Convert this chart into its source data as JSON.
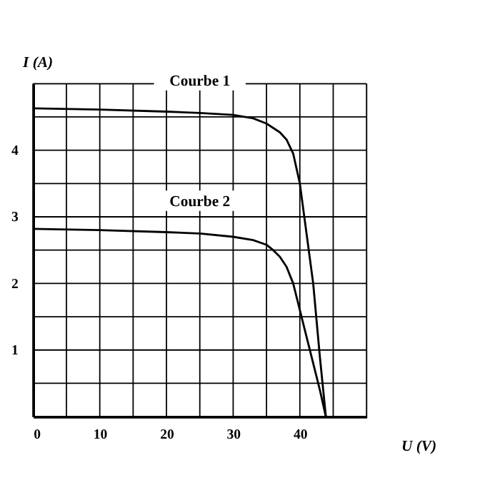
{
  "chart_data": {
    "type": "line",
    "xlabel": "U (V)",
    "ylabel": "I (A)",
    "xlim": [
      0,
      50
    ],
    "ylim": [
      0,
      5
    ],
    "xticks": [
      0,
      {
        "value": 5,
        "label": null
      },
      10,
      {
        "value": 15,
        "label": null
      },
      20,
      {
        "value": 25,
        "label": null
      },
      30,
      {
        "value": 35,
        "label": null
      },
      40,
      {
        "value": 45,
        "label": null
      },
      {
        "value": 50,
        "label": null
      }
    ],
    "yticks": [
      {
        "value": 0,
        "label": null
      },
      {
        "value": 0.5,
        "label": null
      },
      1,
      {
        "value": 1.5,
        "label": null
      },
      2,
      {
        "value": 2.5,
        "label": null
      },
      3,
      {
        "value": 3.5,
        "label": null
      },
      4,
      {
        "value": 4.5,
        "label": null
      },
      {
        "value": 5,
        "label": null
      }
    ],
    "grid": true,
    "marker": "none",
    "line_style": "solid",
    "legend": false,
    "series": [
      {
        "name": "Courbe 1",
        "color": "#000000",
        "x": [
          0,
          10,
          20,
          25,
          30,
          33,
          35,
          37,
          38,
          39,
          40,
          41,
          42,
          43,
          43.9
        ],
        "values": [
          4.63,
          4.61,
          4.58,
          4.56,
          4.53,
          4.48,
          4.4,
          4.27,
          4.16,
          3.95,
          3.5,
          2.75,
          2.0,
          0.9,
          0
        ]
      },
      {
        "name": "Courbe 2",
        "color": "#000000",
        "x": [
          0,
          10,
          20,
          25,
          30,
          33,
          35,
          36,
          37,
          38,
          39,
          40,
          41,
          42,
          43,
          43.9
        ],
        "values": [
          2.82,
          2.8,
          2.77,
          2.75,
          2.7,
          2.65,
          2.58,
          2.5,
          2.4,
          2.25,
          2.0,
          1.6,
          1.2,
          0.8,
          0.4,
          0
        ]
      }
    ]
  }
}
